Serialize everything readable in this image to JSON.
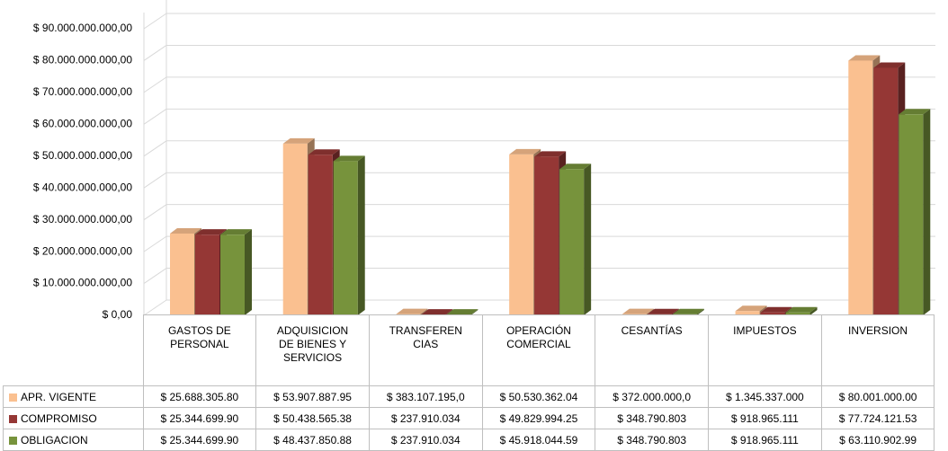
{
  "chart_data": {
    "type": "bar3d",
    "categories": [
      "GASTOS DE PERSONAL",
      "ADQUISICION DE BIENES Y SERVICIOS",
      "TRANSFEREN CIAS",
      "OPERACIÓN COMERCIAL",
      "CESANTÍAS",
      "IMPUESTOS",
      "INVERSION"
    ],
    "series": [
      {
        "name": "APR. VIGENTE",
        "color": "#fac090",
        "values": [
          25688305800,
          53907887950,
          383107195.0,
          50530362040,
          372000000.0,
          1345337000,
          80001000000
        ],
        "value_labels": [
          "$ 25.688.305.80",
          "$ 53.907.887.95",
          "$ 383.107.195,0",
          "$ 50.530.362.04",
          "$ 372.000.000,0",
          "$ 1.345.337.000",
          "$ 80.001.000.00"
        ]
      },
      {
        "name": "COMPROMISO",
        "color": "#953735",
        "values": [
          25344699900,
          50438565380,
          237910034,
          49829994250,
          348790803,
          918965111,
          77724121530
        ],
        "value_labels": [
          "$ 25.344.699.90",
          "$ 50.438.565.38",
          "$ 237.910.034",
          "$ 49.829.994.25",
          "$ 348.790.803",
          "$ 918.965.111",
          "$ 77.724.121.53"
        ]
      },
      {
        "name": "OBLIGACION",
        "color": "#77933c",
        "values": [
          25344699900,
          48437850880,
          237910034,
          45918044590,
          348790803,
          918965111,
          63110902990
        ],
        "value_labels": [
          "$ 25.344.699.90",
          "$ 48.437.850.88",
          "$ 237.910.034",
          "$ 45.918.044.59",
          "$ 348.790.803",
          "$ 918.965.111",
          "$ 63.110.902.99"
        ]
      }
    ],
    "ylim": [
      0,
      90000000000
    ],
    "yticks": [
      {
        "value": 0,
        "label": "$ 0,00"
      },
      {
        "value": 10000000000,
        "label": "$ 10.000.000.000,00"
      },
      {
        "value": 20000000000,
        "label": "$ 20.000.000.000,00"
      },
      {
        "value": 30000000000,
        "label": "$ 30.000.000.000,00"
      },
      {
        "value": 40000000000,
        "label": "$ 40.000.000.000,00"
      },
      {
        "value": 50000000000,
        "label": "$ 50.000.000.000,00"
      },
      {
        "value": 60000000000,
        "label": "$ 60.000.000.000,00"
      },
      {
        "value": 70000000000,
        "label": "$ 70.000.000.000,00"
      },
      {
        "value": 80000000000,
        "label": "$ 80.000.000.000,00"
      },
      {
        "value": 90000000000,
        "label": "$ 90.000.000.000,00"
      }
    ],
    "grid": true
  }
}
